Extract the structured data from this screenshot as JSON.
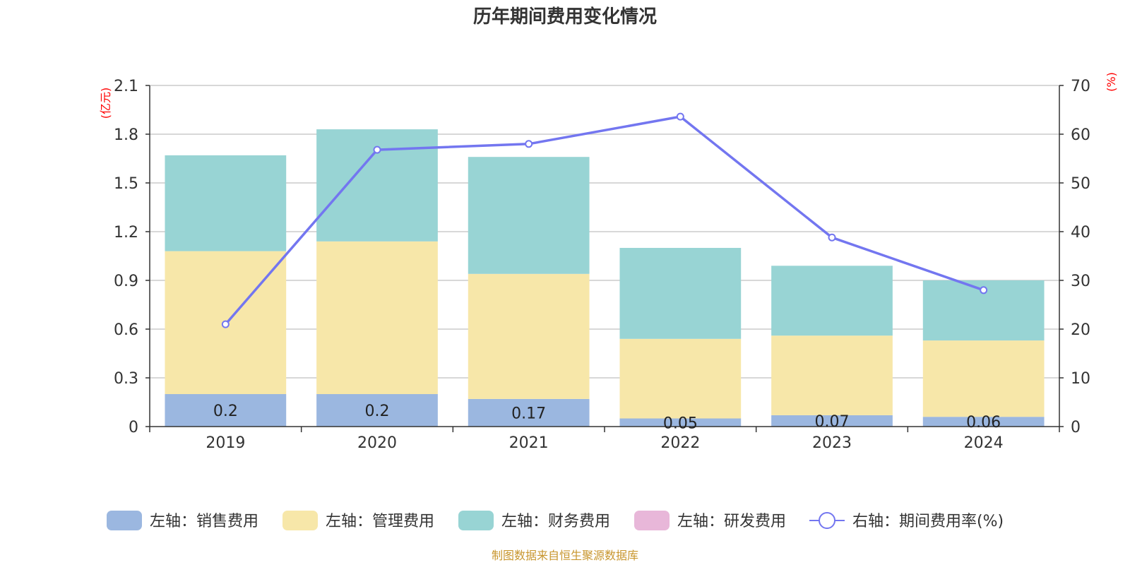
{
  "chart_data": {
    "type": "bar",
    "stacked": true,
    "title": "历年期间费用变化情况",
    "categories": [
      "2019",
      "2020",
      "2021",
      "2022",
      "2023",
      "2024"
    ],
    "left_axis": {
      "unit_label": "(亿元)",
      "ylim": [
        0,
        2.1
      ],
      "ticks": [
        "0",
        "0.3",
        "0.6",
        "0.9",
        "1.2",
        "1.5",
        "1.8",
        "2.1"
      ],
      "tick_values": [
        0,
        0.3,
        0.6,
        0.9,
        1.2,
        1.5,
        1.8,
        2.1
      ]
    },
    "right_axis": {
      "unit_label": "(%)",
      "ylim": [
        0,
        70
      ],
      "ticks": [
        "0",
        "10",
        "20",
        "30",
        "40",
        "50",
        "60",
        "70"
      ],
      "tick_values": [
        0,
        10,
        20,
        30,
        40,
        50,
        60,
        70
      ]
    },
    "series": [
      {
        "name": "左轴：销售费用",
        "type": "bar",
        "axis": "left",
        "color": "#9bb7e0",
        "values": [
          0.2,
          0.2,
          0.17,
          0.05,
          0.07,
          0.06
        ],
        "labels": [
          "0.2",
          "0.2",
          "0.17",
          "0.05",
          "0.07",
          "0.06"
        ]
      },
      {
        "name": "左轴：管理费用",
        "type": "bar",
        "axis": "left",
        "color": "#f7e7a9",
        "values": [
          0.88,
          0.94,
          0.77,
          0.49,
          0.49,
          0.47
        ]
      },
      {
        "name": "左轴：财务费用",
        "type": "bar",
        "axis": "left",
        "color": "#98d4d4",
        "values": [
          0.59,
          0.69,
          0.72,
          0.56,
          0.43,
          0.37
        ]
      },
      {
        "name": "左轴：研发费用",
        "type": "bar",
        "axis": "left",
        "color": "#e8b7d9",
        "values": [
          0,
          0,
          0,
          0,
          0,
          0
        ]
      },
      {
        "name": "右轴：期间费用率(%)",
        "type": "line",
        "axis": "right",
        "color": "#7376f0",
        "values": [
          21,
          56.8,
          58,
          63.6,
          38.8,
          28
        ]
      }
    ],
    "legend_position": "bottom",
    "grid": true
  },
  "source_note": "制图数据来自恒生聚源数据库"
}
